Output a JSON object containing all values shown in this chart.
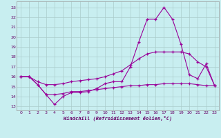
{
  "xlabel": "Windchill (Refroidissement éolien,°C)",
  "bg_color": "#c8eef0",
  "grid_color": "#aacccc",
  "line_color": "#990099",
  "x_ticks": [
    0,
    1,
    2,
    3,
    4,
    5,
    6,
    7,
    8,
    9,
    10,
    11,
    12,
    13,
    14,
    15,
    16,
    17,
    18,
    19,
    20,
    21,
    22,
    23
  ],
  "y_ticks": [
    13,
    14,
    15,
    16,
    17,
    18,
    19,
    20,
    21,
    22,
    23
  ],
  "ylim": [
    12.6,
    23.6
  ],
  "xlim": [
    -0.5,
    23.5
  ],
  "line1_x": [
    0,
    1,
    2,
    3,
    4,
    5,
    6,
    7,
    8,
    9,
    10,
    11,
    12,
    13,
    14,
    15,
    16,
    17,
    18,
    19,
    20,
    21,
    22,
    23
  ],
  "line1_y": [
    16.0,
    16.0,
    15.2,
    14.2,
    13.2,
    14.0,
    14.4,
    14.4,
    14.5,
    14.8,
    15.3,
    15.5,
    15.5,
    17.0,
    19.5,
    21.8,
    21.8,
    23.0,
    21.8,
    19.3,
    16.2,
    15.8,
    17.3,
    15.1
  ],
  "line2_x": [
    0,
    1,
    2,
    3,
    4,
    5,
    6,
    7,
    8,
    9,
    10,
    11,
    12,
    13,
    14,
    15,
    16,
    17,
    18,
    19,
    20,
    21,
    22,
    23
  ],
  "line2_y": [
    16.0,
    16.0,
    15.5,
    15.2,
    15.2,
    15.3,
    15.5,
    15.6,
    15.7,
    15.8,
    16.0,
    16.3,
    16.6,
    17.2,
    17.8,
    18.3,
    18.5,
    18.5,
    18.5,
    18.5,
    18.3,
    17.5,
    17.0,
    15.1
  ],
  "line3_x": [
    0,
    1,
    2,
    3,
    4,
    5,
    6,
    7,
    8,
    9,
    10,
    11,
    12,
    13,
    14,
    15,
    16,
    17,
    18,
    19,
    20,
    21,
    22,
    23
  ],
  "line3_y": [
    16.0,
    16.0,
    15.2,
    14.2,
    14.2,
    14.3,
    14.5,
    14.5,
    14.6,
    14.7,
    14.8,
    14.9,
    15.0,
    15.1,
    15.1,
    15.2,
    15.2,
    15.3,
    15.3,
    15.3,
    15.3,
    15.2,
    15.1,
    15.1
  ]
}
